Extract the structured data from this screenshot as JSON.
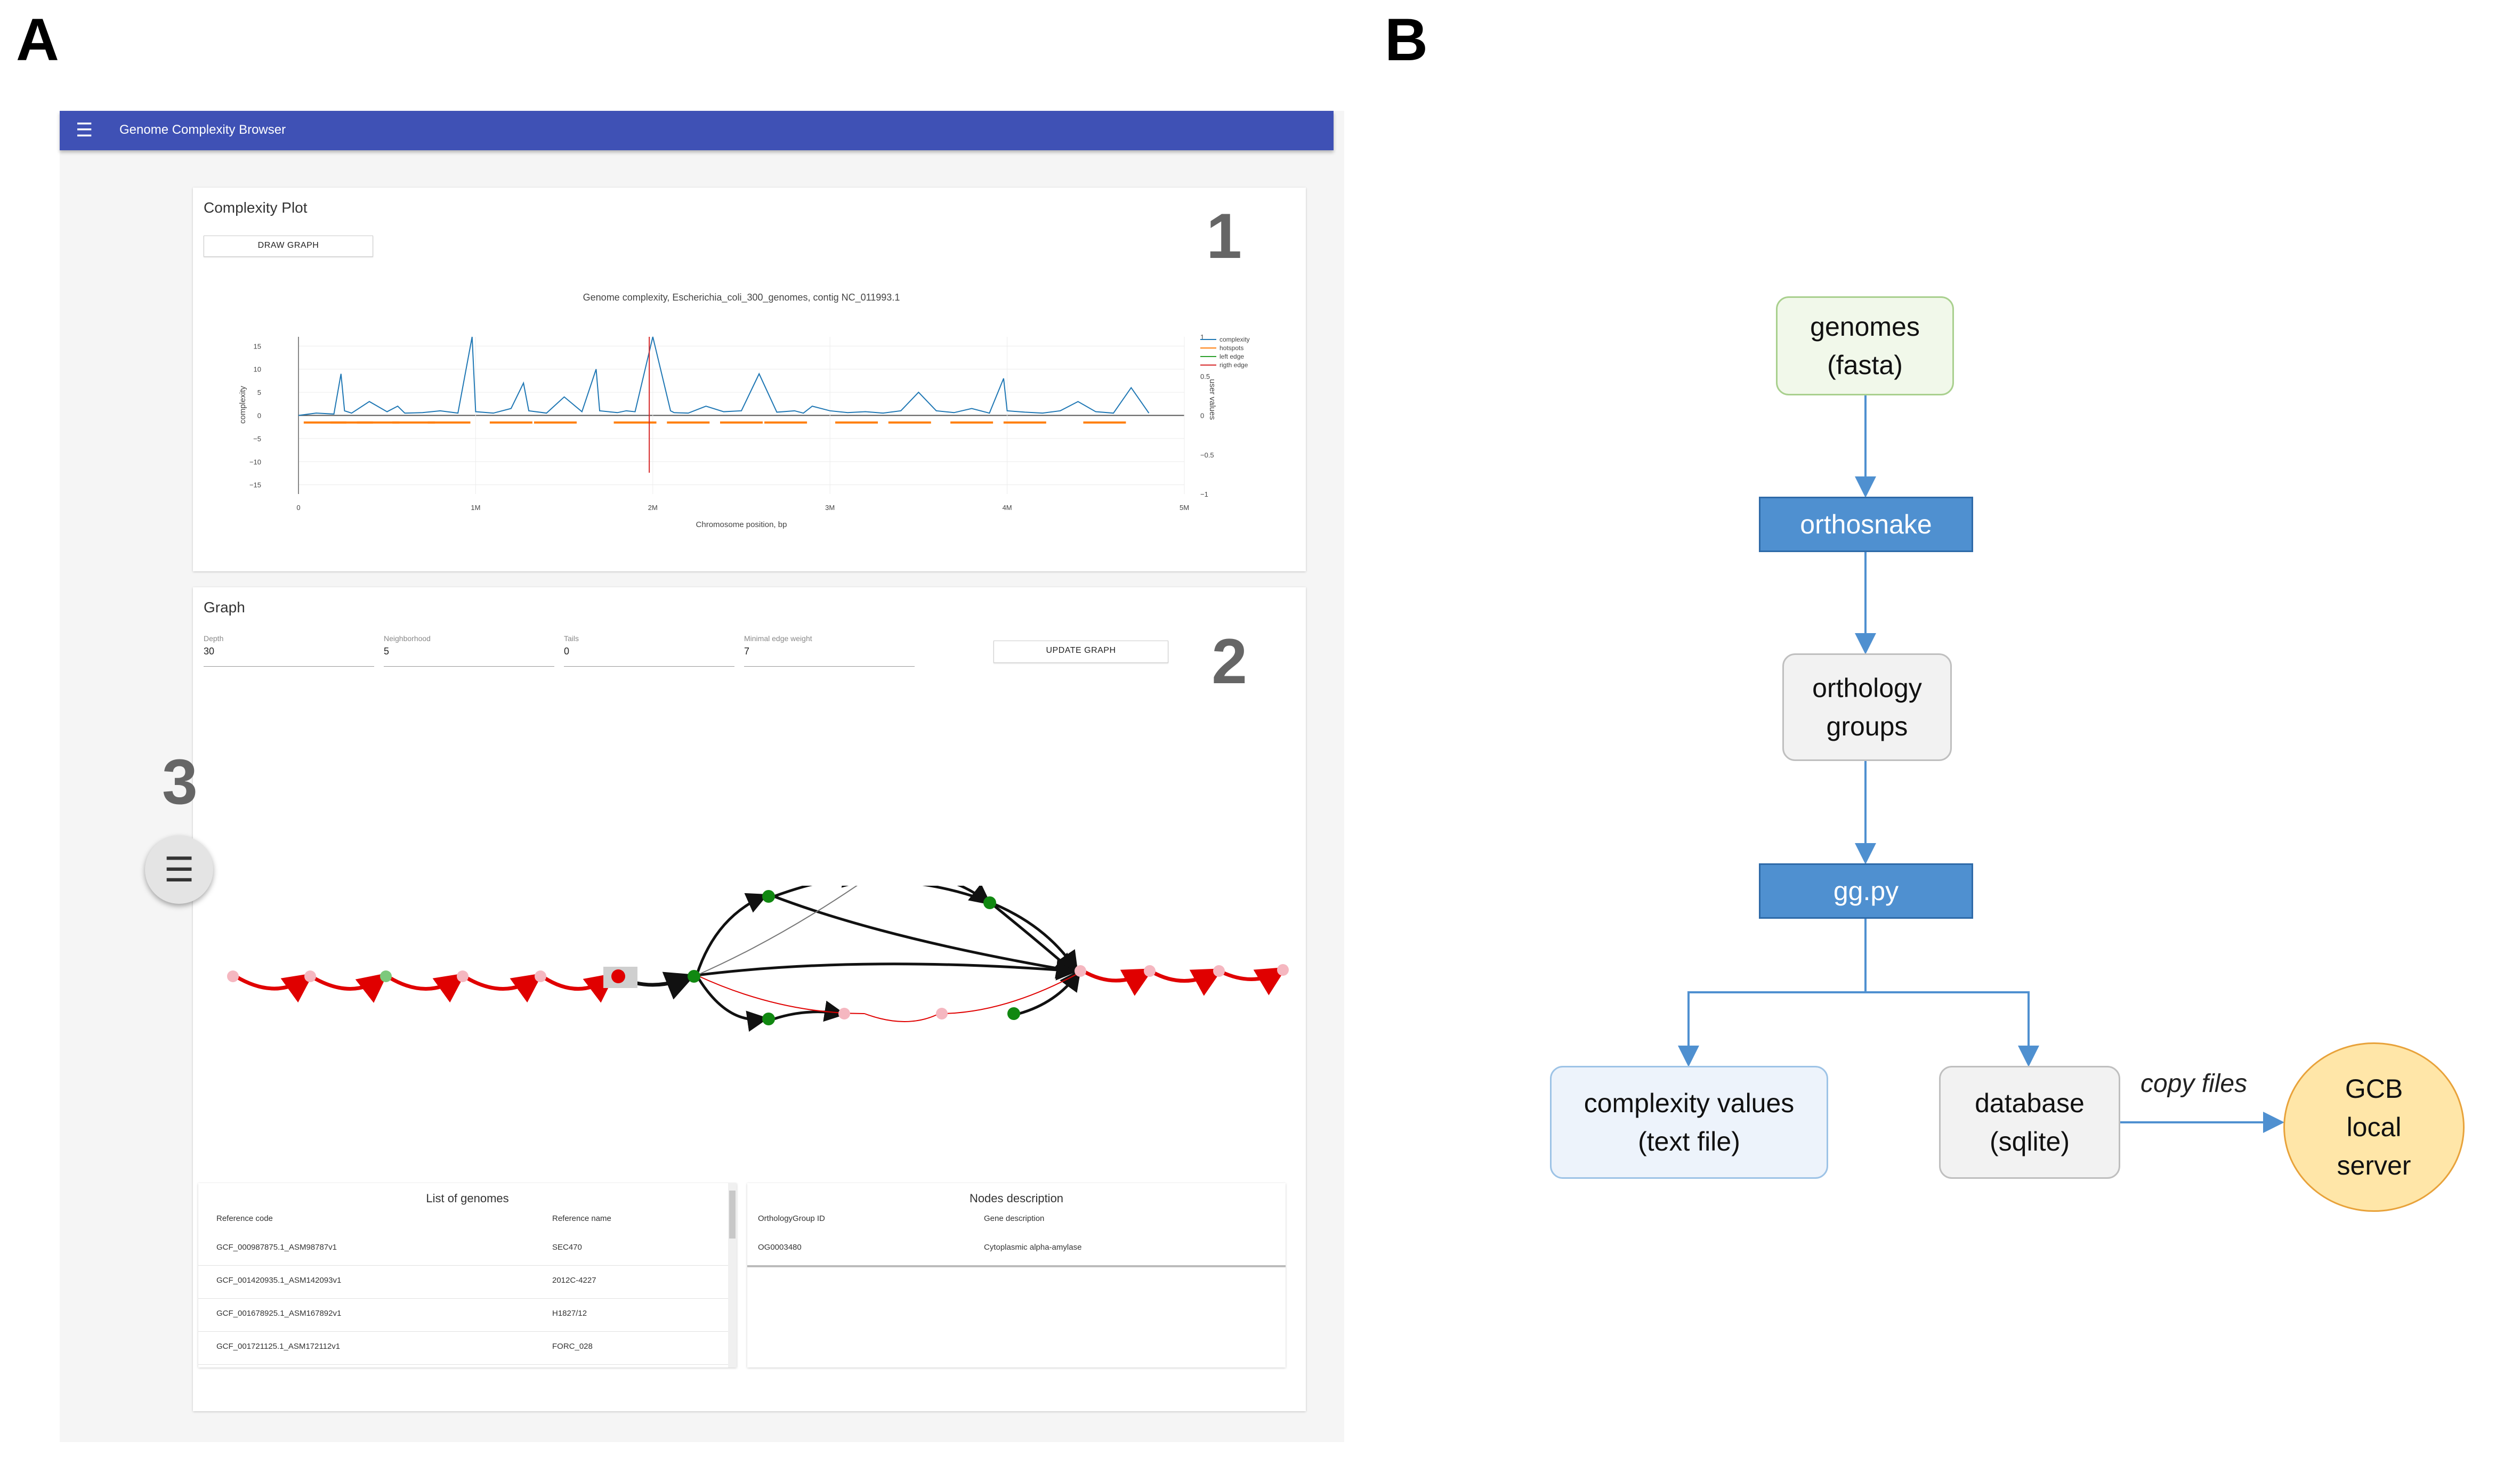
{
  "panel_labels": {
    "a": "A",
    "b": "B"
  },
  "app": {
    "title": "Genome Complexity Browser",
    "menu_icon": "menu-icon",
    "complexity_card": {
      "title": "Complexity Plot",
      "draw_button": "DRAW GRAPH",
      "number": "1"
    },
    "graph_card": {
      "title": "Graph",
      "number": "2",
      "fields": [
        {
          "label": "Depth",
          "value": "30"
        },
        {
          "label": "Neighborhood",
          "value": "5"
        },
        {
          "label": "Tails",
          "value": "0"
        },
        {
          "label": "Minimal edge weight",
          "value": "7"
        }
      ],
      "update_button": "UPDATE GRAPH"
    },
    "side_number": "3",
    "fab_icon": "menu-icon",
    "genomes_table": {
      "title": "List of genomes",
      "headers": [
        "Reference code",
        "Reference name"
      ],
      "rows": [
        [
          "GCF_000987875.1_ASM98787v1",
          "SEC470"
        ],
        [
          "GCF_001420935.1_ASM142093v1",
          "2012C-4227"
        ],
        [
          "GCF_001678925.1_ASM167892v1",
          "H1827/12"
        ],
        [
          "GCF_001721125.1_ASM172112v1",
          "FORC_028"
        ]
      ]
    },
    "nodes_table": {
      "title": "Nodes description",
      "headers": [
        "OrthologyGroup ID",
        "Gene description"
      ],
      "rows": [
        [
          "OG0003480",
          "Cytoplasmic alpha-amylase"
        ]
      ]
    }
  },
  "chart_data": {
    "type": "line",
    "title": "Genome complexity, Escherichia_coli_300_genomes, contig NC_011993.1",
    "xlabel": "Chromosome position, bp",
    "ylabel": "complexity",
    "y2label": "user values",
    "xlim": [
      0,
      5000000
    ],
    "ylim": [
      -17,
      17
    ],
    "y2lim": [
      -1,
      1
    ],
    "x_ticks": [
      "0",
      "1M",
      "2M",
      "3M",
      "4M",
      "5M"
    ],
    "y_ticks": [
      "15",
      "10",
      "5",
      "0",
      "−5",
      "−10",
      "−15"
    ],
    "y2_ticks": [
      "1",
      "0.5",
      "0",
      "−0.5",
      "−1"
    ],
    "grid": true,
    "legend_position": "top-right",
    "series": [
      {
        "name": "complexity",
        "color": "#1f77b4",
        "x": [
          0,
          100000,
          200000,
          240000,
          260000,
          300000,
          400000,
          500000,
          560000,
          600000,
          700000,
          800000,
          900000,
          980000,
          1000000,
          1100000,
          1200000,
          1270000,
          1300000,
          1400000,
          1500000,
          1600000,
          1680000,
          1700000,
          1800000,
          1850000,
          1900000,
          2000000,
          2100000,
          2120000,
          2200000,
          2300000,
          2400000,
          2500000,
          2600000,
          2700000,
          2800000,
          2850000,
          2900000,
          3000000,
          3100000,
          3200000,
          3300000,
          3400000,
          3500000,
          3600000,
          3700000,
          3800000,
          3900000,
          3980000,
          4000000,
          4100000,
          4200000,
          4300000,
          4400000,
          4500000,
          4600000,
          4700000,
          4800000
        ],
        "y": [
          0,
          0.5,
          0.3,
          9,
          1,
          0.5,
          3,
          0.8,
          2,
          0.5,
          0.6,
          1,
          0.5,
          17,
          0.8,
          0.5,
          1.5,
          7,
          1,
          0.5,
          4,
          0.8,
          10,
          1,
          0.6,
          1,
          0.8,
          17,
          1,
          0.6,
          0.5,
          2,
          0.8,
          1,
          9,
          0.7,
          1,
          0.5,
          2,
          1,
          0.6,
          0.8,
          0.5,
          1,
          5,
          1,
          0.6,
          1.5,
          0.5,
          8,
          1,
          0.7,
          0.5,
          1,
          3,
          0.8,
          0.5,
          6,
          0.5
        ]
      },
      {
        "name": "hotspots",
        "color": "#ff7f0e",
        "x": [
          150000,
          300000,
          450000,
          650000,
          850000,
          1200000,
          1450000,
          1900000,
          2200000,
          2500000,
          2750000,
          3150000,
          3450000,
          3800000,
          4100000,
          4550000
        ],
        "y": [
          -0.15,
          -0.15,
          -0.15,
          -0.15,
          -0.15,
          -0.15,
          -0.15,
          -0.15,
          -0.15,
          -0.15,
          -0.15,
          -0.15,
          -0.15,
          -0.15,
          -0.15,
          -0.15
        ]
      },
      {
        "name": "left edge",
        "color": "#2ca02c",
        "x": [],
        "y": []
      },
      {
        "name": "rigth edge",
        "color": "#d62728",
        "x": [
          1980000
        ],
        "y": [
          0
        ]
      }
    ]
  },
  "flowchart": {
    "nodes": {
      "genomes": [
        "genomes",
        "(fasta)"
      ],
      "orthosnake": [
        "orthosnake"
      ],
      "orthology": [
        "orthology",
        "groups"
      ],
      "ggpy": [
        "gg.py"
      ],
      "complexity": [
        "complexity values",
        "(text file)"
      ],
      "database": [
        "database",
        "(sqlite)"
      ],
      "gcb": [
        "GCB",
        "local",
        "server"
      ]
    },
    "edge_label": "copy files",
    "arrow_color": "#4f90d0"
  }
}
